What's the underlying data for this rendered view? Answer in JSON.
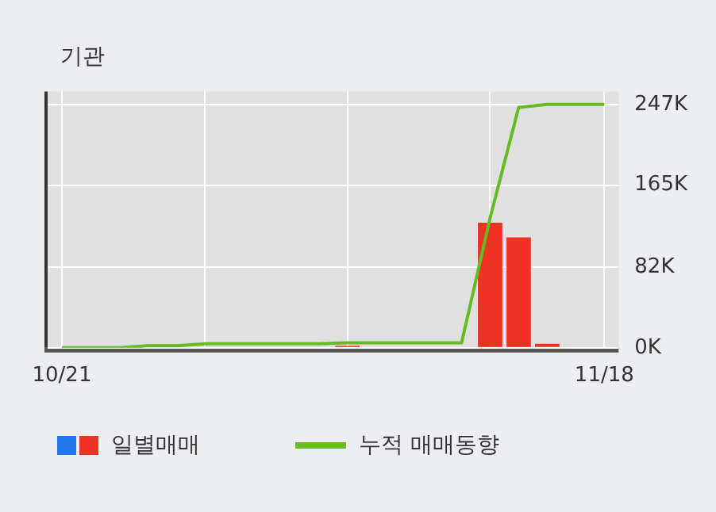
{
  "chart_data": {
    "type": "bar",
    "title": "기관",
    "categories": [
      "10/21",
      null,
      null,
      null,
      null,
      null,
      null,
      null,
      null,
      null,
      null,
      null,
      null,
      null,
      null,
      null,
      null,
      null,
      null,
      "11/18"
    ],
    "series": [
      {
        "name": "일별매매",
        "color": "#ee3322",
        "values": [
          0,
          0,
          0,
          0,
          0,
          0,
          0,
          0,
          0,
          0,
          2,
          0,
          0,
          0,
          0,
          127,
          112,
          4,
          0,
          0
        ]
      },
      {
        "name": "누적 매매동향",
        "type": "line",
        "color": "#66bb22",
        "values": [
          0,
          0,
          0,
          2,
          2,
          4,
          4,
          4,
          4,
          4,
          5,
          5,
          5,
          5,
          5,
          132,
          244,
          247,
          247,
          247
        ]
      }
    ],
    "ylim": [
      0,
      260
    ],
    "yticks": [
      {
        "value": 0,
        "label": "0K"
      },
      {
        "value": 82,
        "label": "82K"
      },
      {
        "value": 165,
        "label": "165K"
      },
      {
        "value": 247,
        "label": "247K"
      }
    ],
    "grid": true,
    "legend": "bottom",
    "marker": "none"
  }
}
